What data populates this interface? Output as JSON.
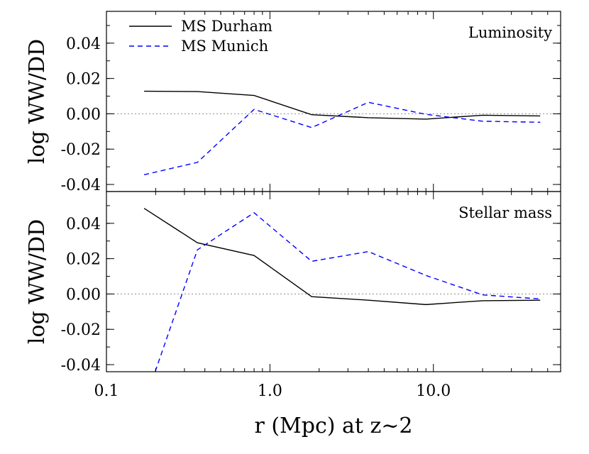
{
  "chart_data": [
    {
      "type": "line",
      "panel_label": "Luminosity",
      "xlabel": "r (Mpc) at z~2",
      "ylabel": "log WW/DD",
      "x_scale": "log",
      "xlim": [
        0.1,
        60
      ],
      "ylim": [
        -0.044,
        0.058
      ],
      "x_ticks": [
        0.1,
        1.0,
        10.0
      ],
      "x_tick_labels": [
        "0.1",
        "1.0",
        "10.0"
      ],
      "y_ticks": [
        -0.04,
        -0.02,
        0.0,
        0.02,
        0.04
      ],
      "y_tick_labels": [
        "-0.04",
        "-0.02",
        "0.00",
        "0.02",
        "0.04"
      ],
      "zero_line": true,
      "legend": {
        "location": "top-left"
      },
      "series": [
        {
          "name": "MS Durham",
          "style": "solid",
          "color": "#000000",
          "x": [
            0.17,
            0.36,
            0.8,
            1.8,
            4.0,
            9.0,
            20.0,
            45.0
          ],
          "y": [
            0.0128,
            0.0126,
            0.0104,
            -0.0005,
            -0.0022,
            -0.003,
            -0.0008,
            -0.0012
          ]
        },
        {
          "name": "MS Munich",
          "style": "dashed",
          "color": "#0000ff",
          "x": [
            0.17,
            0.36,
            0.8,
            1.8,
            4.0,
            9.0,
            20.0,
            45.0
          ],
          "y": [
            -0.0345,
            -0.0275,
            0.0025,
            -0.0078,
            0.0065,
            -0.0003,
            -0.0042,
            -0.0048
          ]
        }
      ]
    },
    {
      "type": "line",
      "panel_label": "Stellar mass",
      "xlabel": "r (Mpc) at z~2",
      "ylabel": "log WW/DD",
      "x_scale": "log",
      "xlim": [
        0.1,
        60
      ],
      "ylim": [
        -0.044,
        0.058
      ],
      "x_ticks": [
        0.1,
        1.0,
        10.0
      ],
      "x_tick_labels": [
        "0.1",
        "1.0",
        "10.0"
      ],
      "y_ticks": [
        -0.04,
        -0.02,
        0.0,
        0.02,
        0.04
      ],
      "y_tick_labels": [
        "-0.04",
        "-0.02",
        "0.00",
        "0.02",
        "0.04"
      ],
      "zero_line": true,
      "series": [
        {
          "name": "MS Durham",
          "style": "solid",
          "color": "#000000",
          "x": [
            0.17,
            0.36,
            0.8,
            1.8,
            4.0,
            9.0,
            20.0,
            45.0
          ],
          "y": [
            0.0485,
            0.029,
            0.0218,
            -0.0015,
            -0.0035,
            -0.006,
            -0.0038,
            -0.0035
          ]
        },
        {
          "name": "MS Munich",
          "style": "dashed",
          "color": "#0000ff",
          "x": [
            0.17,
            0.36,
            0.8,
            1.8,
            4.0,
            9.0,
            20.0,
            45.0
          ],
          "y": [
            -0.062,
            0.025,
            0.046,
            0.0185,
            0.024,
            0.0105,
            -0.0005,
            -0.0028
          ]
        }
      ]
    }
  ]
}
